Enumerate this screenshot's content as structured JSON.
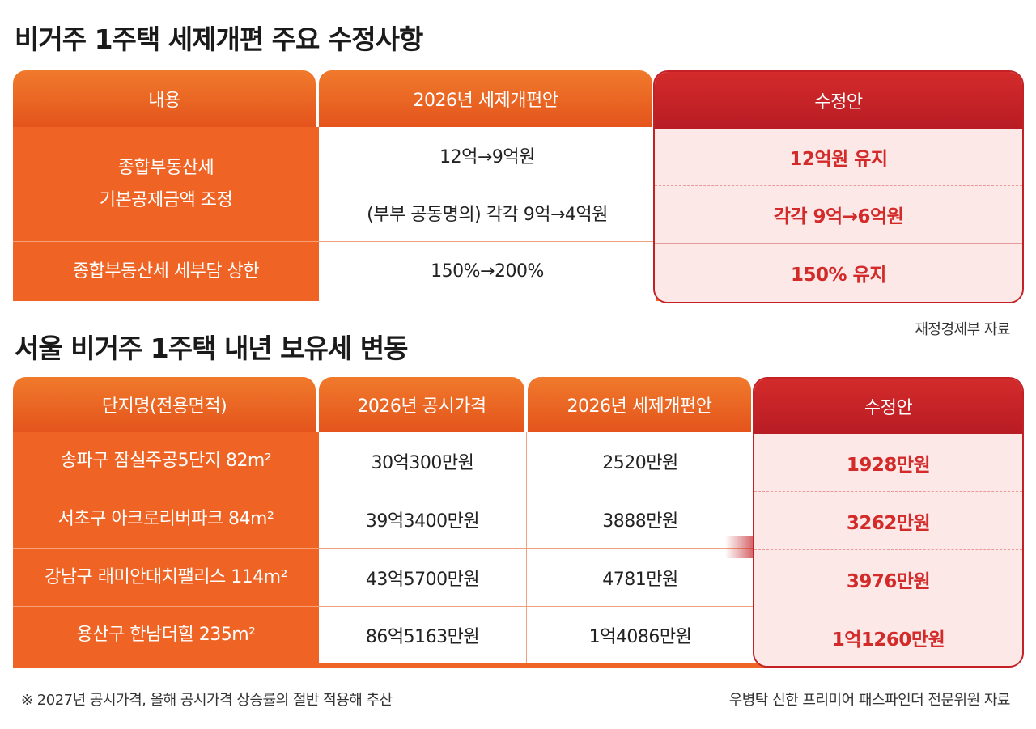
{
  "title1": "비거주 1주택 세제개편 주요 수정사항",
  "title2": "서울 비거주 1주택 내년 보유세 변동",
  "table1": {
    "headers": [
      "내용",
      "2026년 세제개편안",
      "수정안"
    ],
    "row1_label_line1": "종합부동산세",
    "row1_label_line2": "기본공제금액 조정",
    "row1a_proposal": "12억→9억원",
    "row1a_revision": "12억원 유지",
    "row1b_proposal": "(부부 공동명의) 각각 9억→4억원",
    "row1b_revision": "각각 9억→6억원",
    "row2_label": "종합부동산세 세부담 상한",
    "row2_proposal": "150%→200%",
    "row2_revision": "150% 유지",
    "source": "재정경제부 자료"
  },
  "table2": {
    "headers": [
      "단지명(전용면적)",
      "2026년 공시가격",
      "2026년 세제개편안",
      "수정안"
    ],
    "rows": [
      {
        "name": "송파구 잠실주공5단지 82m²",
        "price": "30억300만원",
        "proposal": "2520만원",
        "revision": "1928만원"
      },
      {
        "name": "서초구 아크로리버파크 84m²",
        "price": "39억3400만원",
        "proposal": "3888만원",
        "revision": "3262만원"
      },
      {
        "name": "강남구 래미안대치팰리스 114m²",
        "price": "43억5700만원",
        "proposal": "4781만원",
        "revision": "3976만원"
      },
      {
        "name": "용산구 한남더힐 235m²",
        "price": "86억5163만원",
        "proposal": "1억4086만원",
        "revision": "1억1260만원"
      }
    ]
  },
  "footnote": "※ 2027년 공시가격, 올해 공시가격 상승률의 절반 적용해 추산",
  "source2": "우병탁 신한 프리미어 패스파인더 전문위원 자료",
  "colors": {
    "orange": "#ef6424",
    "red": "#c32126",
    "pink": "#fde8e8",
    "red_text": "#d32a2a"
  },
  "icons": [
    "arrow-right-icon"
  ]
}
